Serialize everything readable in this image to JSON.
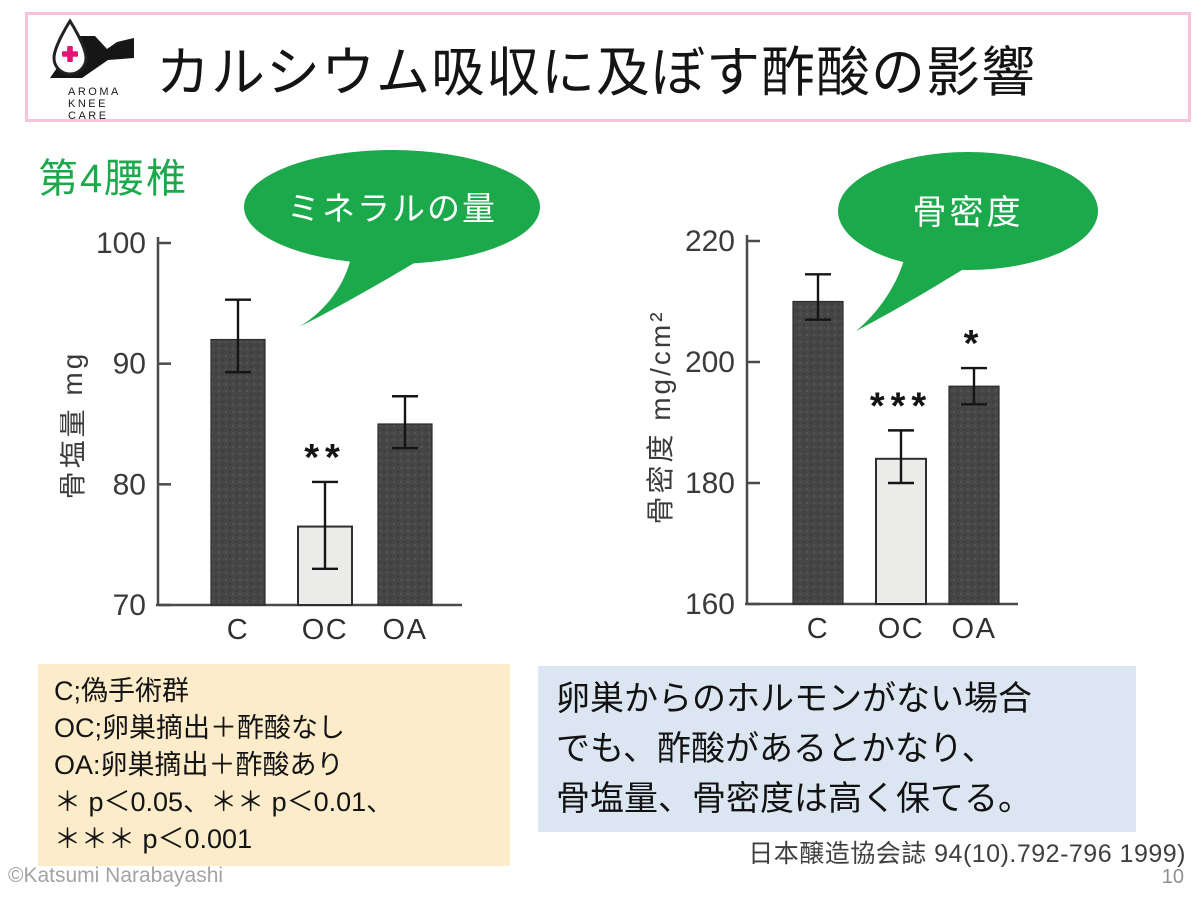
{
  "header": {
    "title": "カルシウム吸収に及ぼす酢酸の影響",
    "logo": {
      "brand_lines": [
        "AROMA",
        "KNEE",
        "CARE"
      ]
    }
  },
  "section_label": "第4腰椎",
  "chart_data": [
    {
      "type": "bar",
      "annotation": "ミネラルの量",
      "ylabel": "骨塩量 mg",
      "xlabel": "",
      "categories": [
        "C",
        "OC",
        "OA"
      ],
      "values": [
        92,
        76.5,
        85
      ],
      "errors_plus": [
        3.3,
        3.7,
        2.3
      ],
      "errors_minus": [
        2.7,
        3.5,
        2.0
      ],
      "significance": [
        "",
        "**",
        ""
      ],
      "bar_styles": [
        "dark",
        "light",
        "dark"
      ],
      "ylim": [
        70,
        100
      ],
      "yticks": [
        70,
        80,
        90,
        100
      ],
      "grid": "off",
      "legend": "none"
    },
    {
      "type": "bar",
      "annotation": "骨密度",
      "ylabel": "骨密度 mg/cm²",
      "xlabel": "",
      "categories": [
        "C",
        "OC",
        "OA"
      ],
      "values": [
        210,
        184,
        196
      ],
      "errors_plus": [
        4.5,
        4.7,
        3.0
      ],
      "errors_minus": [
        3.0,
        4.0,
        3.0
      ],
      "significance": [
        "",
        "***",
        "*"
      ],
      "bar_styles": [
        "dark",
        "light",
        "dark"
      ],
      "ylim": [
        160,
        220
      ],
      "yticks": [
        160,
        180,
        200,
        220
      ],
      "grid": "off",
      "legend": "none"
    }
  ],
  "legend_box": {
    "lines": [
      "C;偽手術群",
      "OC;卵巣摘出＋酢酸なし",
      "OA:卵巣摘出＋酢酸あり",
      "＊ p＜0.05、＊＊ p＜0.01、",
      "＊＊＊ p＜0.001"
    ]
  },
  "conclusion_box": {
    "lines": [
      "卵巣からのホルモンがない場合",
      "でも、酢酸があるとかなり、",
      "骨塩量、骨密度は高く保てる。"
    ]
  },
  "citation": "日本醸造協会誌 94(10).792-796 1999)",
  "footer": {
    "copyright": "©Katsumi Narabayashi",
    "page_number": "10"
  },
  "colors": {
    "accent_green": "#1ca94c",
    "header_border_pink": "#f6c3da",
    "legend_bg": "#fcecca",
    "conclusion_bg": "#dbe6f2",
    "logo_cross_pink": "#e31579",
    "dark_bar": "#464646",
    "light_bar": "#ebebe9"
  }
}
